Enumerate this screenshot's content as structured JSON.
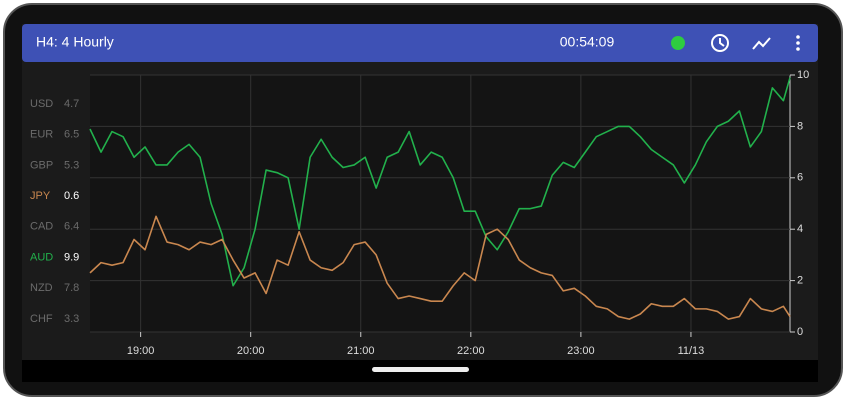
{
  "header": {
    "title": "H4: 4 Hourly",
    "time": "00:54:09"
  },
  "currencies": [
    {
      "name": "USD",
      "value": 4.7
    },
    {
      "name": "EUR",
      "value": 6.5
    },
    {
      "name": "GBP",
      "value": 5.3
    },
    {
      "name": "JPY",
      "value": 0.6
    },
    {
      "name": "CAD",
      "value": 6.4
    },
    {
      "name": "AUD",
      "value": 9.9
    },
    {
      "name": "NZD",
      "value": 7.8
    },
    {
      "name": "CHF",
      "value": 3.3
    }
  ],
  "chart_data": {
    "type": "line",
    "x": [
      18.54,
      18.64,
      18.74,
      18.84,
      18.94,
      19.04,
      19.14,
      19.24,
      19.34,
      19.44,
      19.54,
      19.64,
      19.74,
      19.84,
      19.94,
      20.04,
      20.14,
      20.24,
      20.34,
      20.44,
      20.54,
      20.64,
      20.74,
      20.84,
      20.94,
      21.04,
      21.14,
      21.24,
      21.34,
      21.44,
      21.54,
      21.64,
      21.74,
      21.84,
      21.94,
      22.04,
      22.14,
      22.24,
      22.34,
      22.44,
      22.54,
      22.64,
      22.74,
      22.84,
      22.94,
      23.04,
      23.14,
      23.24,
      23.34,
      23.44,
      23.54,
      23.64,
      23.74,
      23.84,
      23.94,
      24.04,
      24.14,
      24.24,
      24.34,
      24.44,
      24.54,
      24.64,
      24.74,
      24.84,
      24.9
    ],
    "xlim": [
      18.54,
      24.9
    ],
    "xticks": [
      {
        "value": 19,
        "label": "19:00"
      },
      {
        "value": 20,
        "label": "20:00"
      },
      {
        "value": 21,
        "label": "21:00"
      },
      {
        "value": 22,
        "label": "22:00"
      },
      {
        "value": 23,
        "label": "23:00"
      },
      {
        "value": 24,
        "label": "11/13"
      }
    ],
    "ylim": [
      0,
      10
    ],
    "yticks": [
      0,
      2,
      4,
      6,
      8,
      10
    ],
    "grid": true,
    "series": [
      {
        "name": "AUD",
        "color": "#22b14c",
        "values": [
          7.9,
          7.0,
          7.8,
          7.6,
          6.8,
          7.2,
          6.5,
          6.5,
          7.0,
          7.3,
          6.8,
          5.0,
          3.8,
          1.8,
          2.5,
          4.0,
          6.3,
          6.2,
          6.0,
          4.0,
          6.8,
          7.5,
          6.8,
          6.4,
          6.5,
          6.8,
          5.6,
          6.8,
          7.0,
          7.8,
          6.5,
          7.0,
          6.8,
          6.0,
          4.7,
          4.7,
          3.7,
          3.2,
          3.9,
          4.8,
          4.8,
          4.9,
          6.1,
          6.6,
          6.4,
          7.0,
          7.6,
          7.8,
          8.0,
          8.0,
          7.6,
          7.1,
          6.8,
          6.5,
          5.8,
          6.5,
          7.4,
          8.0,
          8.2,
          8.6,
          7.2,
          7.8,
          9.5,
          9.0,
          9.9
        ]
      },
      {
        "name": "JPY",
        "color": "#c9874f",
        "values": [
          2.3,
          2.7,
          2.6,
          2.7,
          3.6,
          3.2,
          4.5,
          3.5,
          3.4,
          3.2,
          3.5,
          3.4,
          3.6,
          2.8,
          2.1,
          2.3,
          1.5,
          2.8,
          2.6,
          3.9,
          2.8,
          2.5,
          2.4,
          2.7,
          3.4,
          3.5,
          3.0,
          1.9,
          1.3,
          1.4,
          1.3,
          1.2,
          1.2,
          1.8,
          2.3,
          2.0,
          3.8,
          4.0,
          3.6,
          2.8,
          2.5,
          2.3,
          2.2,
          1.6,
          1.7,
          1.4,
          1.0,
          0.9,
          0.6,
          0.5,
          0.7,
          1.1,
          1.0,
          1.0,
          1.3,
          0.9,
          0.9,
          0.8,
          0.5,
          0.6,
          1.3,
          0.9,
          0.8,
          1.0,
          0.6
        ]
      }
    ]
  }
}
